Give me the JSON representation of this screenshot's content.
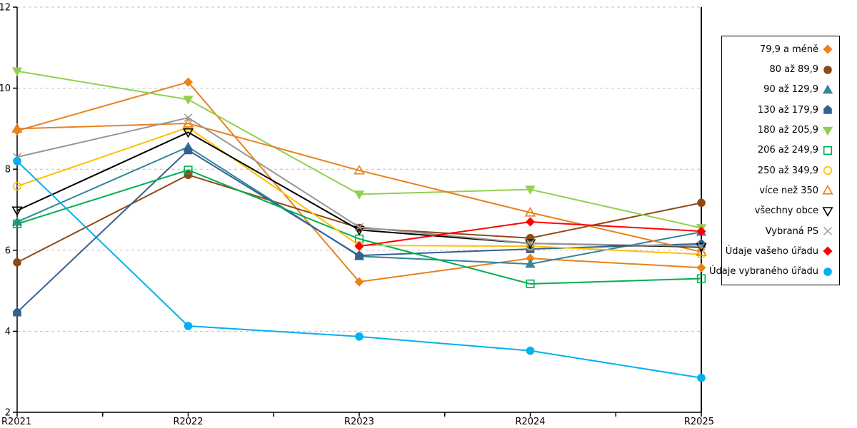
{
  "chart_data": {
    "type": "line",
    "title": "",
    "xlabel": "",
    "ylabel": "",
    "x_categories": [
      "R2021",
      "R2022",
      "R2023",
      "R2024",
      "R2025"
    ],
    "ylim": [
      2,
      12
    ],
    "y_ticks": [
      2,
      4,
      6,
      8,
      10,
      12
    ],
    "grid": "horizontal-dashed",
    "gridline_color": "#BFBFBF",
    "axis_color": "#000000",
    "legend_position": "right-outside-box",
    "series": [
      {
        "name": "79,9 a méně",
        "marker": "diamond",
        "filled": true,
        "color": "#E8821E",
        "values": [
          8.95,
          10.15,
          5.22,
          5.8,
          5.57
        ]
      },
      {
        "name": "80 až 89,9",
        "marker": "circle",
        "filled": true,
        "color": "#8C4A17",
        "values": [
          5.7,
          7.86,
          6.55,
          6.3,
          7.17
        ]
      },
      {
        "name": "90 až 129,9",
        "marker": "triangle-up",
        "filled": true,
        "color": "#31859C",
        "values": [
          6.7,
          8.55,
          5.85,
          5.66,
          6.45
        ]
      },
      {
        "name": "130 až 179,9",
        "marker": "pentagon",
        "filled": true,
        "color": "#35618F",
        "values": [
          4.47,
          8.47,
          5.87,
          6.03,
          6.16
        ]
      },
      {
        "name": "180 až 205,9",
        "marker": "triangle-down",
        "filled": true,
        "color": "#92D050",
        "values": [
          10.42,
          9.72,
          7.38,
          7.5,
          6.55
        ]
      },
      {
        "name": "206 až 249,9",
        "marker": "square",
        "filled": false,
        "color": "#00B050",
        "values": [
          6.65,
          7.98,
          6.28,
          5.17,
          5.3
        ]
      },
      {
        "name": "250 až 349,9",
        "marker": "circle",
        "filled": false,
        "color": "#FFC000",
        "values": [
          7.58,
          9.03,
          6.12,
          6.1,
          5.9
        ]
      },
      {
        "name": "více než 350",
        "marker": "triangle-up",
        "filled": false,
        "color": "#E8821E",
        "values": [
          9.0,
          9.13,
          7.97,
          6.93,
          5.96
        ]
      },
      {
        "name": "všechny obce",
        "marker": "triangle-down",
        "filled": false,
        "color": "#000000",
        "values": [
          6.98,
          8.91,
          6.5,
          6.17,
          6.08
        ]
      },
      {
        "name": "Vybraná PS",
        "marker": "x",
        "filled": false,
        "color": "#969696",
        "values": [
          8.3,
          9.27,
          6.57,
          6.17,
          6.1
        ]
      },
      {
        "name": "Údaje vašeho úřadu",
        "marker": "diamond",
        "filled": true,
        "color": "#FF0000",
        "values": [
          null,
          null,
          6.1,
          6.7,
          6.47
        ]
      },
      {
        "name": "Údaje vybraného úřadu",
        "marker": "circle",
        "filled": true,
        "color": "#00B0F0",
        "values": [
          8.2,
          4.13,
          3.87,
          3.52,
          2.85
        ]
      }
    ]
  }
}
